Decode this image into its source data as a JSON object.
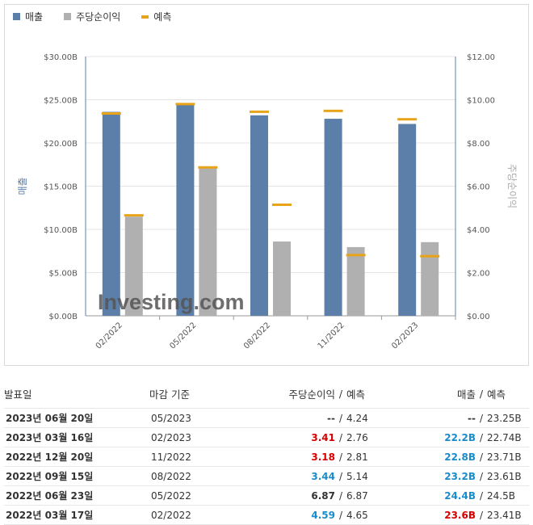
{
  "legend": {
    "revenue": "매출",
    "eps": "주당순이익",
    "forecast": "예측"
  },
  "colors": {
    "revenue": "#5b7fa8",
    "eps": "#b0b0b0",
    "forecast": "#e8a317",
    "positive": "#1a8ccc",
    "negative": "#d60000"
  },
  "chart_data": {
    "type": "bar",
    "categories": [
      "02/2022",
      "05/2022",
      "08/2022",
      "11/2022",
      "02/2023"
    ],
    "series": [
      {
        "name": "매출",
        "axis": "left",
        "values": [
          23.6,
          24.4,
          23.2,
          22.8,
          22.2
        ],
        "forecast": [
          23.41,
          24.5,
          23.61,
          23.71,
          22.74
        ]
      },
      {
        "name": "주당순이익",
        "axis": "right",
        "values": [
          4.59,
          6.87,
          3.44,
          3.18,
          3.41
        ],
        "forecast": [
          4.65,
          6.87,
          5.14,
          2.81,
          2.76
        ]
      }
    ],
    "ylabel": "매출",
    "y2label": "주당순이익",
    "ylim": [
      0,
      30
    ],
    "y2lim": [
      0,
      12
    ],
    "yticks": [
      "$0.00B",
      "$5.00B",
      "$10.00B",
      "$15.00B",
      "$20.00B",
      "$25.00B",
      "$30.00B"
    ],
    "y2ticks": [
      "$0.00",
      "$2.00",
      "$4.00",
      "$6.00",
      "$8.00",
      "$10.00",
      "$12.00"
    ],
    "grid": true,
    "legend_position": "top-left",
    "watermark": "Investing.com"
  },
  "table": {
    "headers": {
      "date": "발표일",
      "period": "마감 기준",
      "eps": "주당순이익",
      "sep": "/",
      "eps_fc": "예측",
      "rev": "매출",
      "rev_fc": "예측"
    },
    "rows": [
      {
        "date": "2023년 06월 20일",
        "period": "05/2023",
        "eps": "--",
        "eps_fc": "4.24",
        "rev": "--",
        "rev_fc": "23.25B",
        "eps_cls": "neu",
        "rev_cls": "neu"
      },
      {
        "date": "2023년 03월 16일",
        "period": "02/2023",
        "eps": "3.41",
        "eps_fc": "2.76",
        "rev": "22.2B",
        "rev_fc": "22.74B",
        "eps_cls": "neg",
        "rev_cls": "pos"
      },
      {
        "date": "2022년 12월 20일",
        "period": "11/2022",
        "eps": "3.18",
        "eps_fc": "2.81",
        "rev": "22.8B",
        "rev_fc": "23.71B",
        "eps_cls": "neg",
        "rev_cls": "pos"
      },
      {
        "date": "2022년 09월 15일",
        "period": "08/2022",
        "eps": "3.44",
        "eps_fc": "5.14",
        "rev": "23.2B",
        "rev_fc": "23.61B",
        "eps_cls": "pos",
        "rev_cls": "pos"
      },
      {
        "date": "2022년 06월 23일",
        "period": "05/2022",
        "eps": "6.87",
        "eps_fc": "6.87",
        "rev": "24.4B",
        "rev_fc": "24.5B",
        "eps_cls": "neu",
        "rev_cls": "pos"
      },
      {
        "date": "2022년 03월 17일",
        "period": "02/2022",
        "eps": "4.59",
        "eps_fc": "4.65",
        "rev": "23.6B",
        "rev_fc": "23.41B",
        "eps_cls": "pos",
        "rev_cls": "neg"
      }
    ]
  }
}
